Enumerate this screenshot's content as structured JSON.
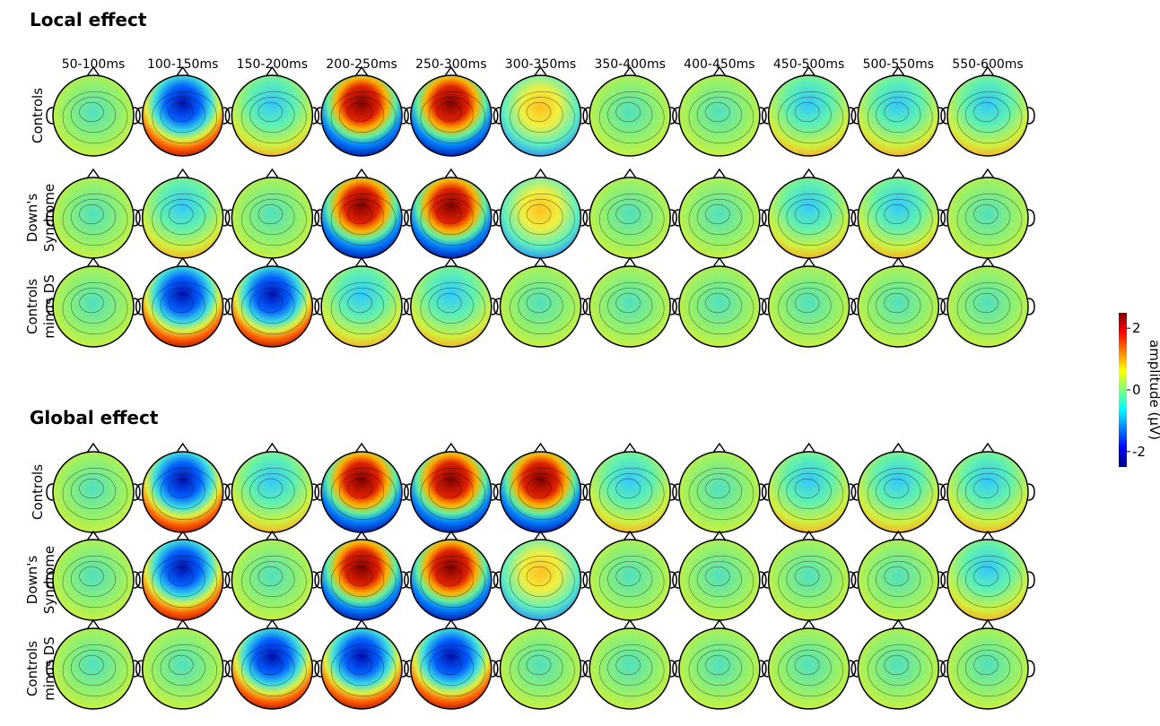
{
  "sections": [
    {
      "title": "Local effect",
      "rows": [
        [
          "Controls"
        ],
        [
          "Down's",
          "Syndrome"
        ],
        [
          "Controls",
          "minus DS"
        ]
      ]
    },
    {
      "title": "Global effect",
      "rows": [
        [
          "Controls"
        ],
        [
          "Down's",
          "Syndrome"
        ],
        [
          "Controls",
          "minus DS"
        ]
      ]
    }
  ],
  "time_windows": [
    "50-100ms",
    "100-150ms",
    "150-200ms",
    "200-250ms",
    "250-300ms",
    "300-350ms",
    "350-400ms",
    "400-450ms",
    "450-500ms",
    "500-550ms",
    "550-600ms"
  ],
  "colorbar": {
    "label": "amplitude (μV)",
    "lim": [
      -2.5,
      2.5
    ],
    "ticks": [
      -2,
      0,
      2
    ]
  }
}
